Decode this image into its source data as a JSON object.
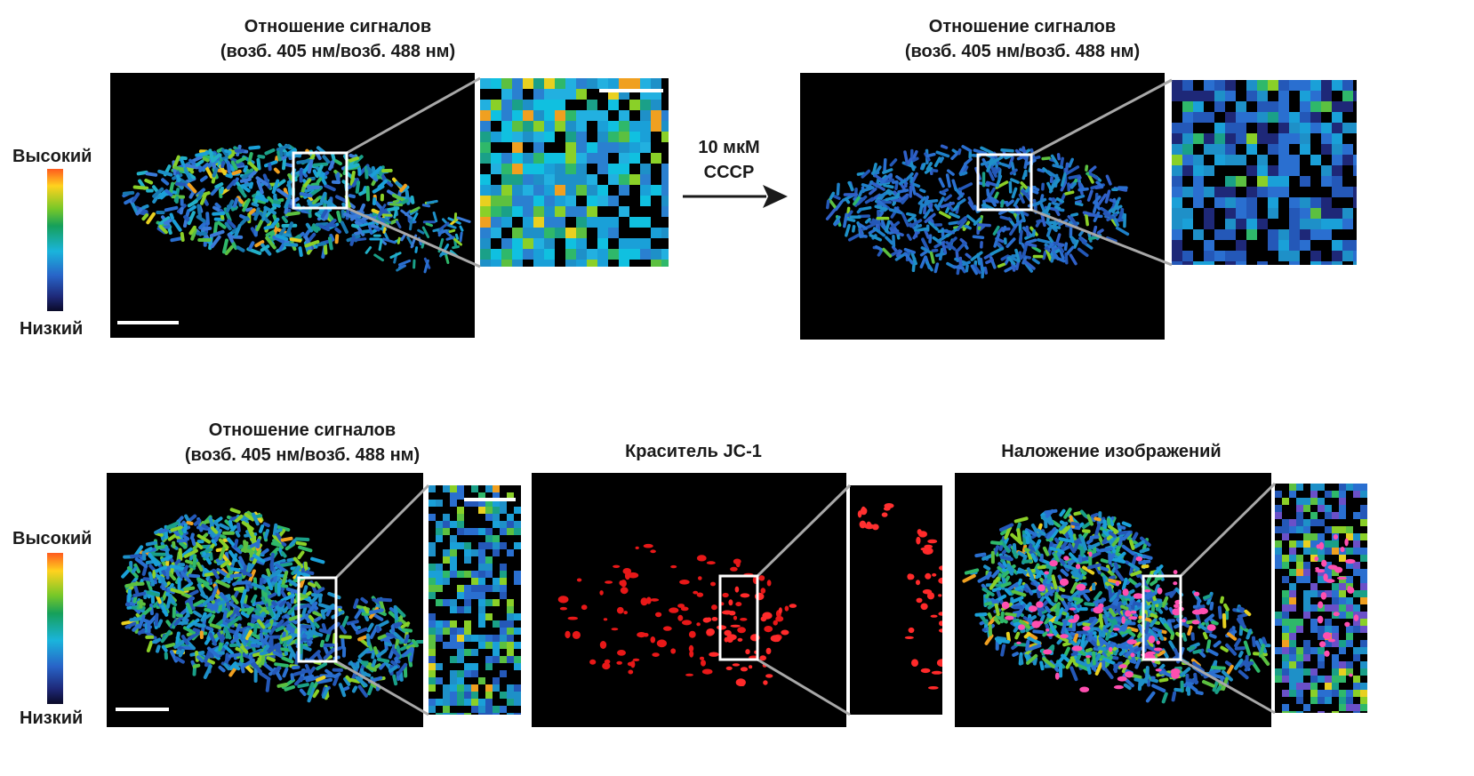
{
  "labels": {
    "ratio_line1": "Отношение сигналов",
    "ratio_line2": "(возб. 405 нм/возб. 488 нм)",
    "dye": "Краситель JC-1",
    "merge": "Наложение изображений",
    "high": "Высокий",
    "low": "Низкий",
    "treatment_line1": "10 мкМ",
    "treatment_line2": "CCCP"
  },
  "colors": {
    "high_ratio": "#ff5a1e",
    "low_ratio": "#0a0a28",
    "jc1": "#ff2020",
    "overlay_pink": "#ff4fb0"
  }
}
